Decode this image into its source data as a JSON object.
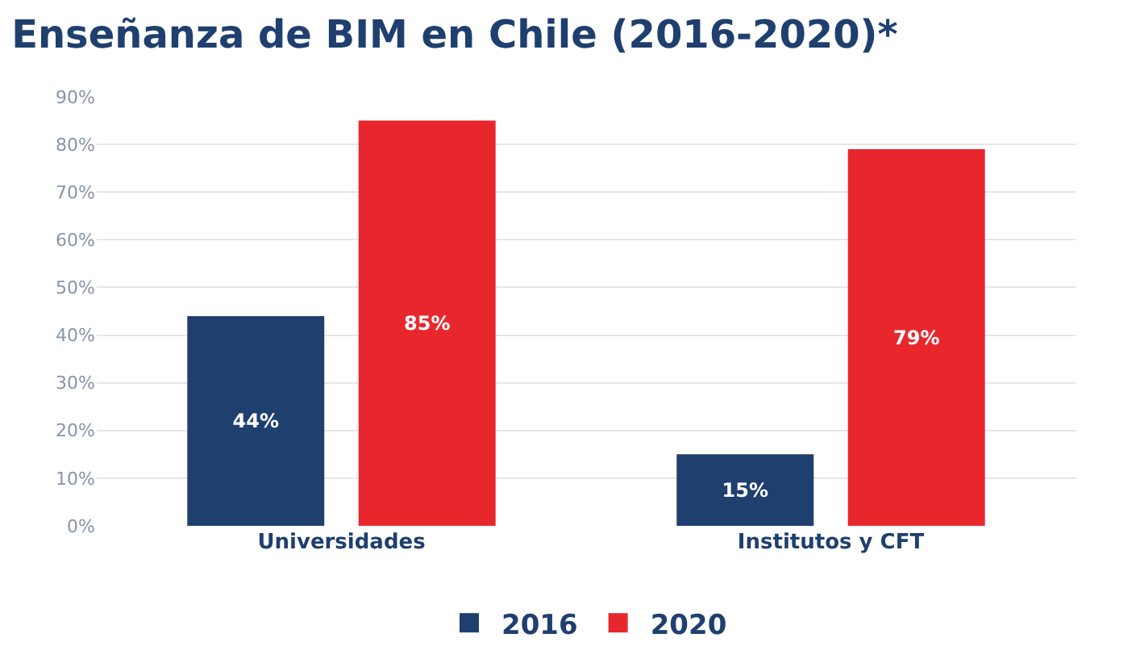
{
  "chart_data": {
    "type": "bar",
    "title": "Enseñanza de BIM en Chile (2016-2020)*",
    "categories": [
      "Universidades",
      "Institutos y CFT"
    ],
    "series": [
      {
        "name": "2016",
        "color": "#1f3f6e",
        "values": [
          44,
          15
        ],
        "value_labels": [
          "44%",
          "15%"
        ]
      },
      {
        "name": "2020",
        "color": "#e8272d",
        "values": [
          85,
          79
        ],
        "value_labels": [
          "85%",
          "79%"
        ]
      }
    ],
    "ylim": [
      0,
      90
    ],
    "yticks": [
      {
        "value": 0,
        "label": "0%"
      },
      {
        "value": 10,
        "label": "10%"
      },
      {
        "value": 20,
        "label": "20%"
      },
      {
        "value": 30,
        "label": "30%"
      },
      {
        "value": 40,
        "label": "40%"
      },
      {
        "value": 50,
        "label": "50%"
      },
      {
        "value": 60,
        "label": "60%"
      },
      {
        "value": 70,
        "label": "70%"
      },
      {
        "value": 80,
        "label": "80%"
      },
      {
        "value": 90,
        "label": "90%"
      }
    ],
    "grid": "y",
    "legend": "bottom"
  }
}
